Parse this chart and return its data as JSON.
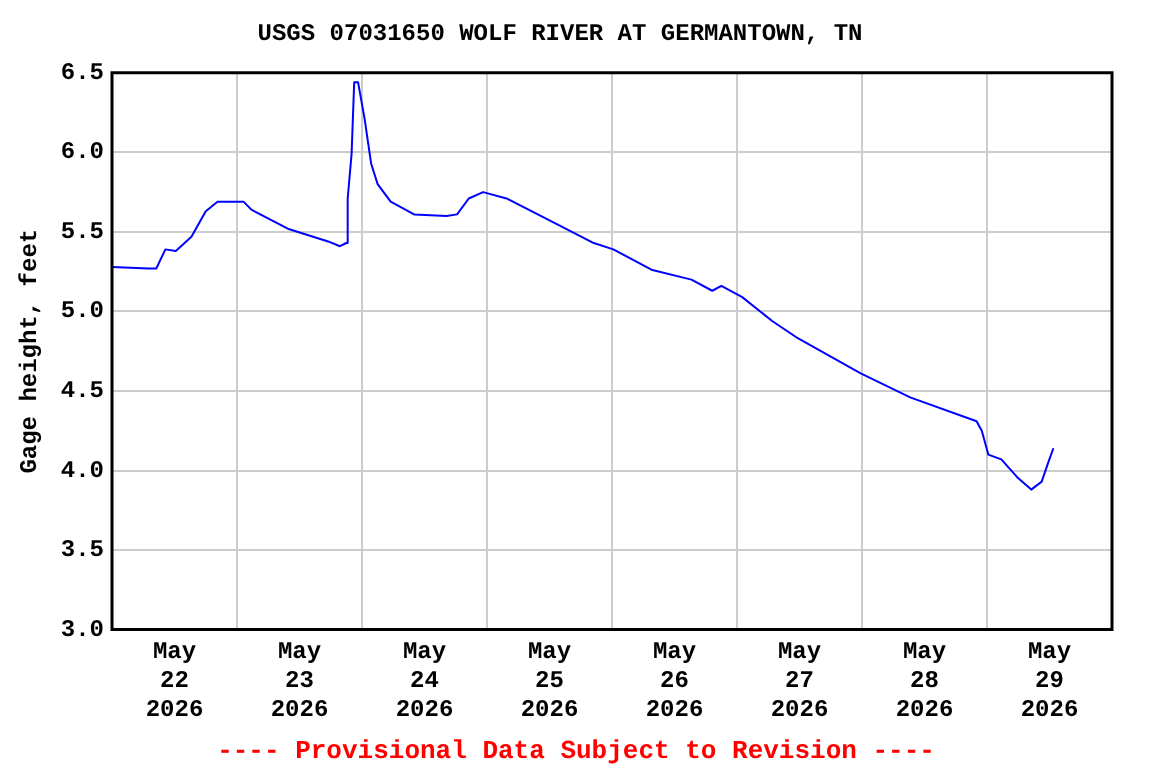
{
  "chart_data": {
    "type": "line",
    "title": "USGS 07031650 WOLF RIVER AT GERMANTOWN, TN",
    "ylabel": "Gage height, feet",
    "annotations": [
      "---- Provisional Data Subject to Revision ----"
    ],
    "x": [
      "2026-05-22T00:00",
      "2026-05-22T07:00",
      "2026-05-22T08:30",
      "2026-05-22T10:15",
      "2026-05-22T12:15",
      "2026-05-22T15:15",
      "2026-05-22T18:00",
      "2026-05-22T20:15",
      "2026-05-23T01:15",
      "2026-05-23T02:45",
      "2026-05-23T09:45",
      "2026-05-23T17:30",
      "2026-05-23T19:45",
      "2026-05-23T21:00",
      "2026-05-23T21:15",
      "2026-05-23T22:00",
      "2026-05-23T22:30",
      "2026-05-23T23:15",
      "2026-05-24T00:30",
      "2026-05-24T01:45",
      "2026-05-24T03:00",
      "2026-05-24T05:30",
      "2026-05-24T10:00",
      "2026-05-24T16:15",
      "2026-05-24T18:15",
      "2026-05-24T20:30",
      "2026-05-24T23:15",
      "2026-05-25T03:45",
      "2026-05-25T12:45",
      "2026-05-25T20:30",
      "2026-05-26T00:15",
      "2026-05-26T07:45",
      "2026-05-26T15:15",
      "2026-05-26T19:15",
      "2026-05-26T21:00",
      "2026-05-27T01:00",
      "2026-05-27T06:45",
      "2026-05-27T11:45",
      "2026-05-27T23:45",
      "2026-05-28T09:15",
      "2026-05-28T22:00",
      "2026-05-28T23:00",
      "2026-05-29T00:15",
      "2026-05-29T02:45",
      "2026-05-29T05:45",
      "2026-05-29T08:30",
      "2026-05-29T10:30",
      "2026-05-29T11:45",
      "2026-05-29T12:45"
    ],
    "series": [
      {
        "color": "#0000ff",
        "values": [
          5.28,
          5.27,
          5.27,
          5.39,
          5.38,
          5.47,
          5.63,
          5.69,
          5.69,
          5.64,
          5.52,
          5.44,
          5.41,
          5.43,
          5.71,
          5.99,
          6.44,
          6.44,
          6.21,
          5.93,
          5.8,
          5.69,
          5.61,
          5.6,
          5.61,
          5.71,
          5.75,
          5.71,
          5.56,
          5.43,
          5.39,
          5.26,
          5.2,
          5.13,
          5.16,
          5.09,
          4.94,
          4.83,
          4.61,
          4.46,
          4.31,
          4.25,
          4.1,
          4.07,
          3.96,
          3.88,
          3.93,
          4.05,
          4.14
        ]
      }
    ],
    "xlim": [
      "2026-05-22T00:00",
      "2026-05-30T00:00"
    ],
    "xticks": [
      {
        "value": "2026-05-22T00:00",
        "label": null
      },
      {
        "value": "2026-05-22T12:00",
        "label": "May\n22\n2026"
      },
      {
        "value": "2026-05-23T00:00",
        "label": null
      },
      {
        "value": "2026-05-23T12:00",
        "label": "May\n23\n2026"
      },
      {
        "value": "2026-05-24T00:00",
        "label": null
      },
      {
        "value": "2026-05-24T12:00",
        "label": "May\n24\n2026"
      },
      {
        "value": "2026-05-25T00:00",
        "label": null
      },
      {
        "value": "2026-05-25T12:00",
        "label": "May\n25\n2026"
      },
      {
        "value": "2026-05-26T00:00",
        "label": null
      },
      {
        "value": "2026-05-26T12:00",
        "label": "May\n26\n2026"
      },
      {
        "value": "2026-05-27T00:00",
        "label": null
      },
      {
        "value": "2026-05-27T12:00",
        "label": "May\n27\n2026"
      },
      {
        "value": "2026-05-28T00:00",
        "label": null
      },
      {
        "value": "2026-05-28T12:00",
        "label": "May\n28\n2026"
      },
      {
        "value": "2026-05-29T00:00",
        "label": null
      },
      {
        "value": "2026-05-29T12:00",
        "label": "May\n29\n2026"
      },
      {
        "value": "2026-05-30T00:00",
        "label": null
      }
    ],
    "ylim": [
      3,
      6.5
    ],
    "yticks": [
      {
        "value": 3,
        "label": "3.0"
      },
      3.5,
      {
        "value": 4,
        "label": "4.0"
      },
      4.5,
      {
        "value": 5,
        "label": "5.0"
      },
      5.5,
      {
        "value": 6,
        "label": "6.0"
      },
      6.5
    ],
    "grid": true,
    "legend": false,
    "marker": "none",
    "line_style": "solid"
  }
}
